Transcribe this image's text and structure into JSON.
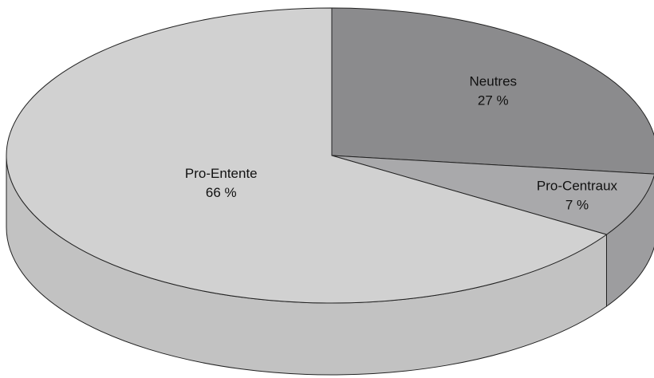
{
  "chart_data": {
    "type": "pie",
    "categories": [
      "Neutres",
      "Pro-Centraux",
      "Pro-Entente"
    ],
    "values": [
      27,
      7,
      66
    ],
    "value_labels": [
      "27 %",
      "7 %",
      "66 %"
    ],
    "colors": [
      "#8b8b8d",
      "#a9a9ab",
      "#d1d1d1"
    ]
  }
}
